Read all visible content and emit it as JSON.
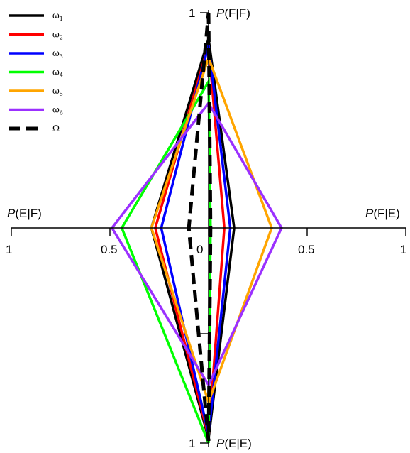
{
  "chart_data": {
    "type": "radar",
    "axes": {
      "top": {
        "label_prefix": "P",
        "label_suffix": "(F|F)",
        "range": [
          0,
          1
        ],
        "end_tick": "1"
      },
      "bottom": {
        "label_prefix": "P",
        "label_suffix": "(E|E)",
        "range": [
          0,
          1
        ],
        "end_tick": "1"
      },
      "left": {
        "label_prefix": "P",
        "label_suffix": "(E|F)",
        "range": [
          0,
          1
        ],
        "ticks": [
          "1",
          "0.5",
          "0"
        ]
      },
      "right": {
        "label_prefix": "P",
        "label_suffix": "(F|E)",
        "range": [
          0,
          1
        ],
        "ticks": [
          "0.5",
          "1"
        ]
      }
    },
    "legend_position": "top-left",
    "grid": false,
    "series": [
      {
        "name": "ω",
        "subscript": "1",
        "color": "#000000",
        "dashed": false,
        "top": 0.88,
        "right": 0.13,
        "bottom": 0.98,
        "left": 0.29
      },
      {
        "name": "ω",
        "subscript": "2",
        "color": "#ff0000",
        "dashed": false,
        "top": 0.85,
        "right": 0.08,
        "bottom": 0.97,
        "left": 0.27
      },
      {
        "name": "ω",
        "subscript": "3",
        "color": "#0000ff",
        "dashed": false,
        "top": 0.85,
        "right": 0.11,
        "bottom": 0.96,
        "left": 0.24
      },
      {
        "name": "ω",
        "subscript": "4",
        "color": "#00ff00",
        "dashed": false,
        "top": 0.68,
        "right": 0.01,
        "bottom": 1.0,
        "left": 0.44
      },
      {
        "name": "ω",
        "subscript": "5",
        "color": "#ffa500",
        "dashed": false,
        "top": 0.79,
        "right": 0.32,
        "bottom": 0.81,
        "left": 0.29
      },
      {
        "name": "ω",
        "subscript": "6",
        "color": "#9b30ff",
        "dashed": false,
        "top": 0.58,
        "right": 0.37,
        "bottom": 0.73,
        "left": 0.49
      },
      {
        "name": "Ω",
        "subscript": "",
        "color": "#000000",
        "dashed": true,
        "top": 1.0,
        "right": 0.01,
        "bottom": 0.99,
        "left": 0.1
      }
    ]
  }
}
